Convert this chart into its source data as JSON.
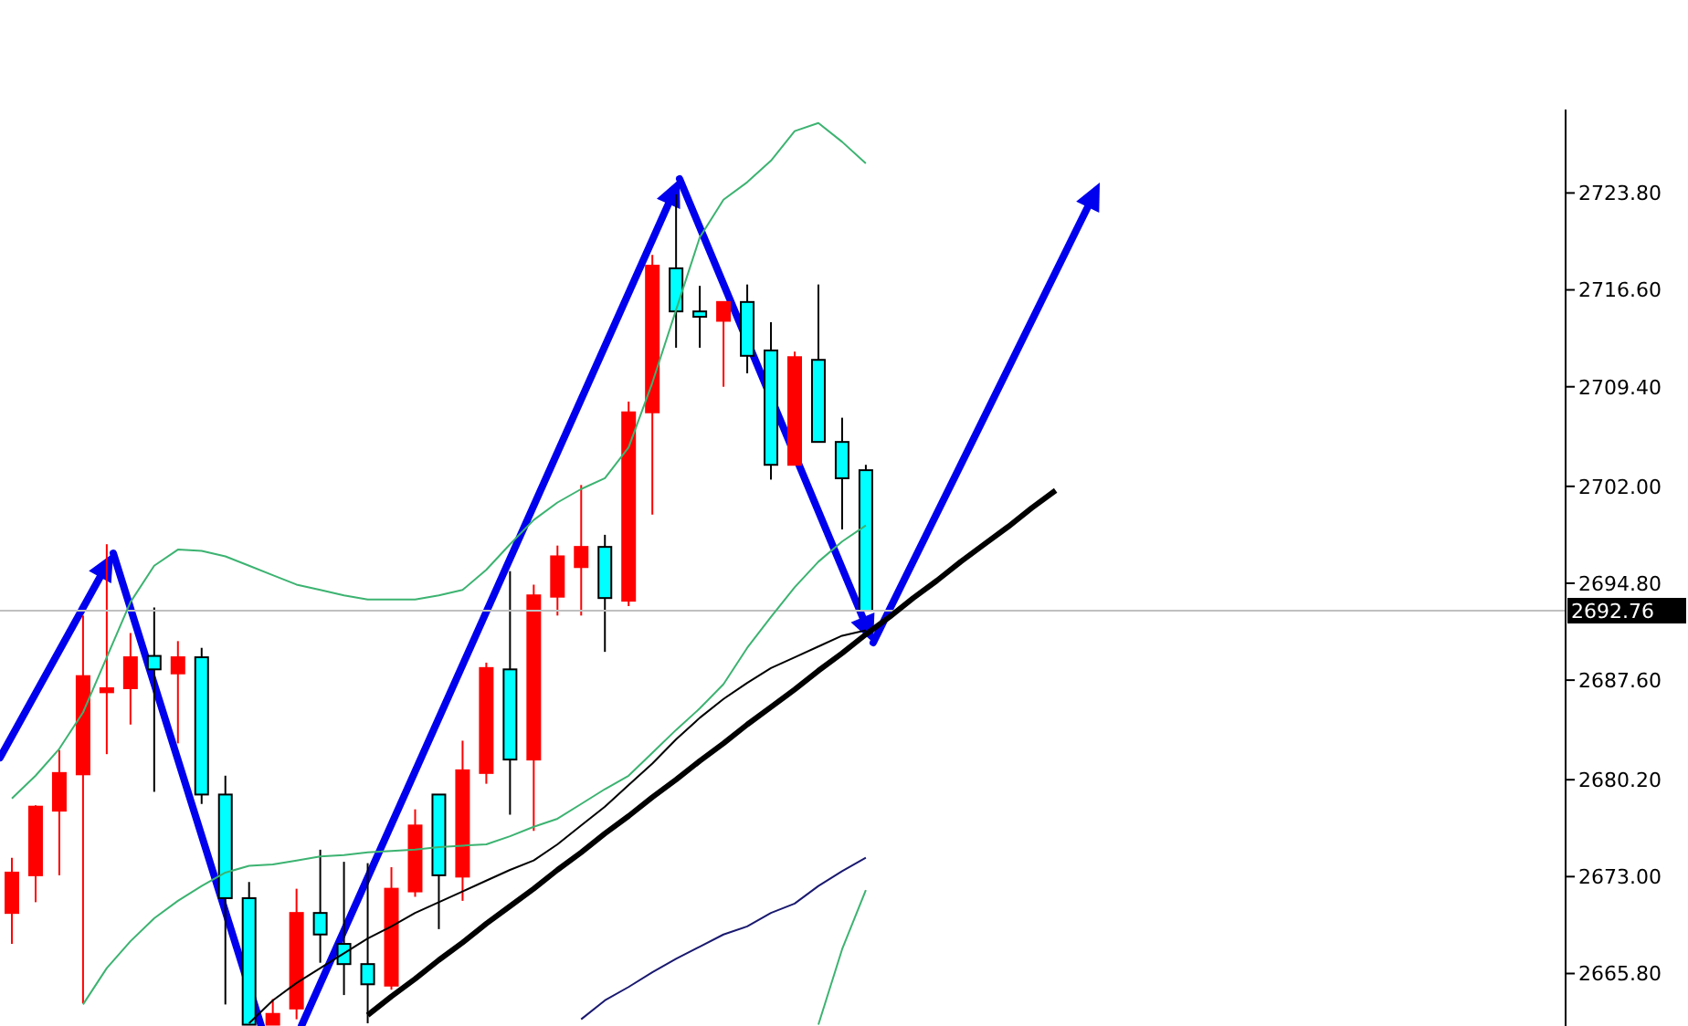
{
  "chart_data": {
    "type": "candlestick",
    "categories": [
      null,
      null,
      null,
      null,
      null,
      null,
      null,
      null,
      null,
      null,
      null,
      null,
      null,
      null,
      null,
      null,
      null,
      null,
      null,
      null,
      null,
      null,
      null,
      null,
      null,
      null,
      null,
      null,
      null,
      null,
      null,
      null,
      null,
      null,
      null,
      null,
      null,
      null,
      null,
      null,
      null,
      null,
      null,
      null,
      null,
      null,
      null,
      null,
      null,
      null,
      null,
      null,
      null,
      null,
      null,
      null,
      null,
      null,
      null,
      null,
      null,
      null,
      null,
      null,
      null,
      null
    ],
    "ohlc": [
      [
        2670.3,
        2674.4,
        2668.0,
        2673.3
      ],
      [
        2673.1,
        2678.3,
        2671.1,
        2678.2
      ],
      [
        2677.9,
        2682.4,
        2673.1,
        2680.7
      ],
      [
        2680.6,
        2692.4,
        2663.6,
        2687.9
      ],
      [
        2686.7,
        2697.7,
        2682.1,
        2687.0
      ],
      [
        2687.0,
        2691.1,
        2684.3,
        2689.3
      ],
      [
        2689.4,
        2693.0,
        2679.3,
        2688.4
      ],
      [
        2688.1,
        2690.5,
        2682.9,
        2689.3
      ],
      [
        2689.3,
        2690.0,
        2678.4,
        2679.1
      ],
      [
        2679.1,
        2680.5,
        2663.5,
        2671.4
      ],
      [
        2671.4,
        2672.6,
        2662.0,
        2662.0
      ],
      [
        2662.0,
        2663.9,
        2662.0,
        2662.8
      ],
      [
        2663.2,
        2672.1,
        2662.4,
        2670.3
      ],
      [
        2670.3,
        2675.0,
        2666.6,
        2668.7
      ],
      [
        2668.0,
        2674.1,
        2664.2,
        2666.5
      ],
      [
        2666.5,
        2674.0,
        2662.1,
        2665.0
      ],
      [
        2664.9,
        2673.7,
        2664.6,
        2672.1
      ],
      [
        2671.9,
        2678.0,
        2671.5,
        2676.8
      ],
      [
        2679.1,
        2679.1,
        2669.1,
        2673.1
      ],
      [
        2673.0,
        2683.1,
        2671.2,
        2680.9
      ],
      [
        2680.7,
        2688.9,
        2679.9,
        2688.5
      ],
      [
        2688.4,
        2695.7,
        2677.6,
        2681.7
      ],
      [
        2681.7,
        2694.7,
        2676.4,
        2693.9
      ],
      [
        2693.8,
        2697.6,
        2692.4,
        2696.8
      ],
      [
        2696.0,
        2702.1,
        2692.4,
        2697.5
      ],
      [
        2697.5,
        2698.4,
        2689.7,
        2693.7
      ],
      [
        2693.5,
        2708.3,
        2693.1,
        2707.5
      ],
      [
        2707.5,
        2719.2,
        2699.9,
        2718.4
      ],
      [
        2718.2,
        2723.7,
        2712.3,
        2715.0
      ],
      [
        2715.0,
        2716.9,
        2712.3,
        2714.6
      ],
      [
        2714.3,
        2715.7,
        2709.4,
        2715.7
      ],
      [
        2715.7,
        2717.0,
        2710.4,
        2711.7
      ],
      [
        2712.1,
        2714.2,
        2702.5,
        2703.6
      ],
      [
        2703.6,
        2712.0,
        2703.6,
        2711.6
      ],
      [
        2711.4,
        2717.0,
        2705.3,
        2705.3
      ],
      [
        2705.3,
        2707.1,
        2698.8,
        2702.6
      ],
      [
        2703.2,
        2703.6,
        2692.76,
        2692.76
      ],
      null,
      null,
      null,
      null,
      null,
      null,
      null,
      null,
      null,
      null,
      null,
      null,
      null,
      null,
      null,
      null,
      null,
      null,
      null,
      null,
      null,
      null,
      null,
      null,
      null,
      null,
      null,
      null,
      null
    ],
    "colors": [
      "#ff0000",
      "#ff0000",
      "#ff0000",
      "#ff0000",
      "#ff0000",
      "#ff0000",
      "#00ffff",
      "#ff0000",
      "#00ffff",
      "#00ffff",
      "#00ffff",
      "#ff0000",
      "#ff0000",
      "#00ffff",
      "#00ffff",
      "#00ffff",
      "#ff0000",
      "#ff0000",
      "#00ffff",
      "#ff0000",
      "#ff0000",
      "#00ffff",
      "#ff0000",
      "#ff0000",
      "#ff0000",
      "#00ffff",
      "#ff0000",
      "#ff0000",
      "#00ffff",
      "#00ffff",
      "#ff0000",
      "#00ffff",
      "#00ffff",
      "#ff0000",
      "#00ffff",
      "#00ffff",
      "#00ffff",
      null,
      null,
      null,
      null,
      null,
      null,
      null,
      null,
      null,
      null,
      null,
      null,
      null,
      null,
      null,
      null,
      null,
      null,
      null,
      null,
      null,
      null,
      null,
      null,
      null,
      null,
      null,
      null,
      null
    ],
    "series": [
      {
        "type": "line",
        "color": "#3cb371",
        "values": [
          2678.8,
          2680.5,
          2682.5,
          2685.2,
          2689.3,
          2693.4,
          2696.1,
          2697.3,
          2697.2,
          2696.8,
          2696.1,
          2695.4,
          2694.7,
          2694.3,
          2693.9,
          2693.6,
          2693.6,
          2693.6,
          2693.9,
          2694.3,
          2695.8,
          2697.7,
          2699.5,
          2700.8,
          2701.8,
          2702.6,
          2704.9,
          2709.7,
          2715.1,
          2720.5,
          2723.3,
          2724.6,
          2726.2,
          2728.4,
          2729.0,
          2727.6,
          2726.0,
          null,
          null,
          null,
          null,
          null,
          null,
          null,
          null,
          null,
          null,
          null,
          null,
          null,
          null,
          null,
          null,
          null,
          null,
          null,
          null,
          null,
          null,
          null,
          null,
          null,
          null,
          null,
          null,
          null
        ]
      },
      {
        "type": "line",
        "color": "#3cb371",
        "values": [
          null,
          null,
          null,
          2663.5,
          2666.2,
          2668.2,
          2669.9,
          2671.2,
          2672.3,
          2673.3,
          2673.8,
          2673.9,
          2674.2,
          2674.5,
          2674.6,
          2674.8,
          2674.9,
          2675.0,
          2675.2,
          2675.3,
          2675.4,
          2676.0,
          2676.7,
          2677.3,
          2678.4,
          2679.5,
          2680.5,
          2682.2,
          2683.9,
          2685.5,
          2687.3,
          2690.0,
          2692.3,
          2694.5,
          2696.4,
          2697.9,
          2699.1,
          null,
          null,
          null,
          null,
          null,
          null,
          null,
          null,
          null,
          null,
          null,
          null,
          null,
          null,
          null,
          null,
          null,
          null,
          null,
          null,
          null,
          null,
          null,
          null,
          null,
          null,
          null,
          null,
          null
        ]
      },
      {
        "type": "line",
        "color": "#3cb371",
        "values": [
          null,
          null,
          null,
          null,
          null,
          null,
          null,
          null,
          null,
          null,
          null,
          null,
          null,
          null,
          null,
          null,
          null,
          null,
          null,
          null,
          null,
          null,
          null,
          null,
          null,
          null,
          null,
          null,
          null,
          null,
          null,
          null,
          null,
          null,
          2662.0,
          2667.6,
          2672.0,
          null,
          null,
          null,
          null,
          null,
          null,
          null,
          null,
          null,
          null,
          null,
          null,
          null,
          null,
          null,
          null,
          null,
          null,
          null,
          null,
          null,
          null,
          null,
          null,
          null,
          null,
          null,
          null,
          null
        ]
      },
      {
        "type": "line",
        "color": "#000000",
        "values": [
          null,
          null,
          null,
          null,
          null,
          null,
          null,
          null,
          null,
          null,
          2662.1,
          2663.8,
          2665.1,
          2666.2,
          2667.3,
          2668.4,
          2669.3,
          2670.3,
          2671.1,
          2671.9,
          2672.7,
          2673.5,
          2674.2,
          2675.4,
          2676.8,
          2678.2,
          2679.8,
          2681.4,
          2683.2,
          2684.8,
          2686.2,
          2687.4,
          2688.5,
          2689.3,
          2690.1,
          2690.9,
          2691.3,
          null,
          null,
          null,
          null,
          null,
          null,
          null,
          null,
          null,
          null,
          null,
          null,
          null,
          null,
          null,
          null,
          null,
          null,
          null,
          null,
          null,
          null,
          null,
          null,
          null,
          null,
          null,
          null,
          null
        ]
      },
      {
        "type": "line",
        "color": "#191970",
        "values": [
          null,
          null,
          null,
          null,
          null,
          null,
          null,
          null,
          null,
          null,
          null,
          null,
          null,
          null,
          null,
          null,
          null,
          null,
          null,
          null,
          null,
          null,
          null,
          null,
          2662.4,
          2663.8,
          2664.8,
          2665.9,
          2666.9,
          2667.8,
          2668.7,
          2669.3,
          2670.3,
          2671.0,
          2672.3,
          2673.4,
          2674.4,
          null,
          null,
          null,
          null,
          null,
          null,
          null,
          null,
          null,
          null,
          null,
          null,
          null,
          null,
          null,
          null,
          null,
          null,
          null,
          null,
          null,
          null,
          null,
          null,
          null,
          null,
          null,
          null,
          null
        ]
      },
      {
        "type": "line",
        "color": "#000000",
        "values": [
          null,
          null,
          null,
          null,
          null,
          null,
          null,
          null,
          null,
          null,
          null,
          null,
          null,
          null,
          null,
          2662.7,
          2664.1,
          2665.4,
          2666.8,
          2668.1,
          2669.5,
          2670.8,
          2672.1,
          2673.5,
          2674.8,
          2676.2,
          2677.5,
          2678.9,
          2680.2,
          2681.6,
          2682.9,
          2684.3,
          2685.6,
          2686.9,
          2688.3,
          2689.6,
          2691.0,
          2692.3,
          2693.7,
          2695.0,
          2696.4,
          2697.7,
          2699.0,
          2700.4,
          2701.7,
          null,
          null,
          null,
          null,
          null,
          null,
          null,
          null,
          null,
          null,
          null,
          null,
          null,
          null,
          null,
          null,
          null,
          null,
          null,
          null,
          null
        ]
      }
    ],
    "ylim": [
      2661.9,
      2730.0
    ],
    "yticks": [
      {
        "value": 2665.8,
        "label": "2665.80"
      },
      {
        "value": 2673.0,
        "label": "2673.00"
      },
      {
        "value": 2680.2,
        "label": "2680.20"
      },
      {
        "value": 2687.6,
        "label": "2687.60"
      },
      {
        "value": 2694.8,
        "label": "2694.80"
      },
      {
        "value": 2702.0,
        "label": "2702.00"
      },
      {
        "value": 2709.4,
        "label": "2709.40"
      },
      {
        "value": 2716.6,
        "label": "2716.60"
      },
      {
        "value": 2723.8,
        "label": "2723.80"
      }
    ],
    "ref_lines": [
      {
        "axis": "y",
        "value": 2692.76,
        "label": "2692.76",
        "color": "#c0c0c0"
      }
    ],
    "tick_labels": "y"
  }
}
